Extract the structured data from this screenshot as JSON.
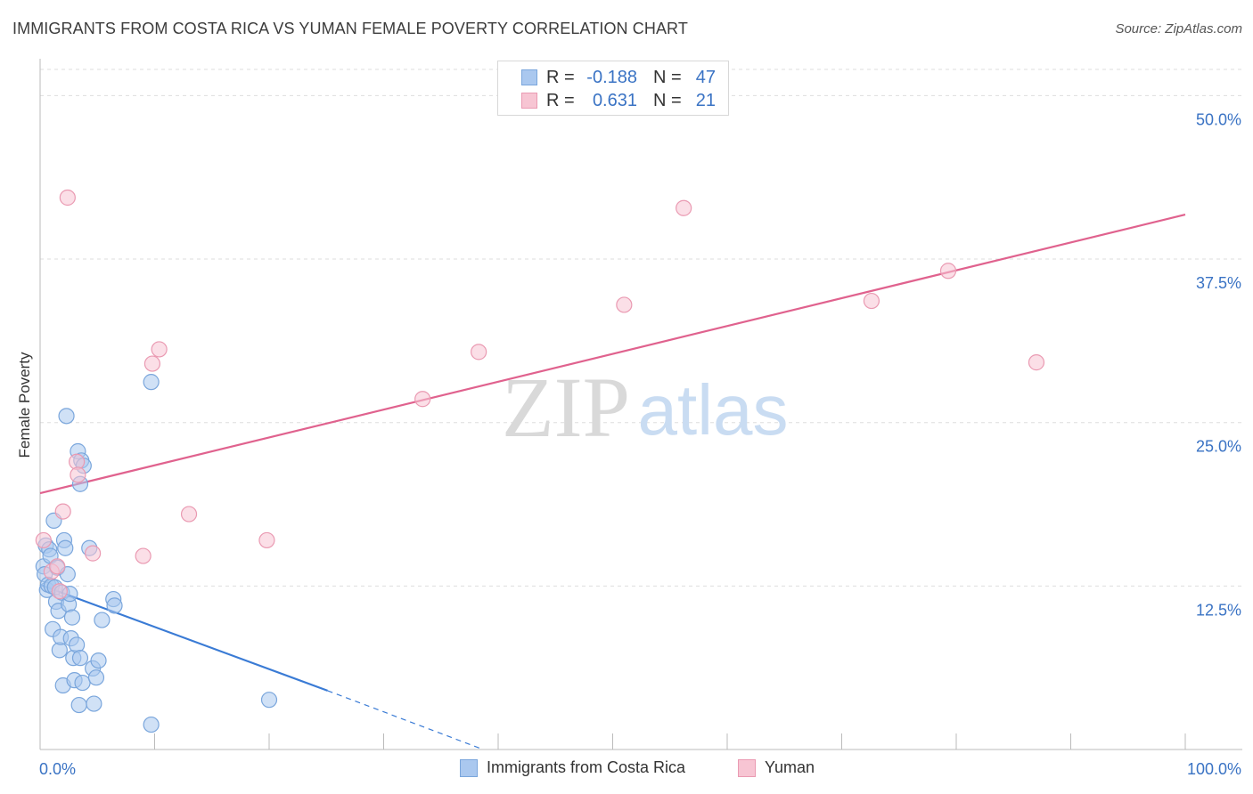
{
  "header": {
    "title": "IMMIGRANTS FROM COSTA RICA VS YUMAN FEMALE POVERTY CORRELATION CHART",
    "source": "Source: ZipAtlas.com"
  },
  "watermark": {
    "part1": "ZIP",
    "part2": "atlas"
  },
  "legend": {
    "rows": [
      {
        "r_label": "R =",
        "r_value": "-0.188",
        "n_label": "N =",
        "n_value": "47",
        "color": "#aac8ef",
        "stroke": "#7aa6dc"
      },
      {
        "r_label": "R =",
        "r_value": "0.631",
        "n_label": "N =",
        "n_value": "21",
        "color": "#f7c5d3",
        "stroke": "#ea9ab2"
      }
    ]
  },
  "bottom_legend": {
    "items": [
      {
        "label": "Immigrants from Costa Rica",
        "color": "#aac8ef",
        "stroke": "#7aa6dc"
      },
      {
        "label": "Yuman",
        "color": "#f7c5d3",
        "stroke": "#ea9ab2"
      }
    ]
  },
  "chart_data": {
    "type": "scatter",
    "title": "IMMIGRANTS FROM COSTA RICA VS YUMAN FEMALE POVERTY CORRELATION CHART",
    "xlabel": "",
    "ylabel": "Female Poverty",
    "xlim": [
      0,
      100
    ],
    "ylim": [
      0,
      52.0
    ],
    "x_tick_labels": [
      "0.0%",
      "100.0%"
    ],
    "y_ticks": [
      12.5,
      25.0,
      37.5,
      50.0
    ],
    "y_tick_labels": [
      "12.5%",
      "25.0%",
      "37.5%",
      "50.0%"
    ],
    "grid": true,
    "colors": {
      "blue": "#3a7bd5",
      "pink": "#e0628e",
      "axis_text": "#3a73c4"
    },
    "series": [
      {
        "name": "Immigrants from Costa Rica",
        "color": "#aac8ef",
        "stroke": "#7aa6dc",
        "points": [
          [
            0.3,
            14.0
          ],
          [
            0.4,
            13.4
          ],
          [
            0.5,
            15.6
          ],
          [
            0.6,
            12.2
          ],
          [
            0.7,
            12.6
          ],
          [
            0.8,
            15.3
          ],
          [
            0.9,
            14.8
          ],
          [
            1.0,
            12.5
          ],
          [
            1.1,
            9.2
          ],
          [
            1.2,
            17.5
          ],
          [
            1.3,
            12.4
          ],
          [
            1.4,
            11.3
          ],
          [
            1.5,
            13.9
          ],
          [
            1.6,
            10.6
          ],
          [
            1.7,
            7.6
          ],
          [
            1.8,
            8.6
          ],
          [
            1.9,
            12.0
          ],
          [
            2.0,
            4.9
          ],
          [
            2.1,
            16.0
          ],
          [
            2.2,
            15.4
          ],
          [
            2.3,
            25.5
          ],
          [
            2.4,
            13.4
          ],
          [
            2.5,
            11.1
          ],
          [
            2.6,
            11.9
          ],
          [
            2.7,
            8.5
          ],
          [
            2.8,
            10.1
          ],
          [
            2.9,
            7.0
          ],
          [
            3.0,
            5.3
          ],
          [
            3.2,
            8.0
          ],
          [
            3.3,
            22.8
          ],
          [
            3.4,
            3.4
          ],
          [
            3.5,
            7.0
          ],
          [
            3.5,
            20.3
          ],
          [
            3.6,
            22.1
          ],
          [
            3.7,
            5.1
          ],
          [
            3.8,
            21.7
          ],
          [
            4.3,
            15.4
          ],
          [
            4.6,
            6.2
          ],
          [
            4.7,
            3.5
          ],
          [
            4.9,
            5.5
          ],
          [
            5.1,
            6.8
          ],
          [
            5.4,
            9.9
          ],
          [
            6.4,
            11.5
          ],
          [
            6.5,
            11.0
          ],
          [
            9.7,
            28.1
          ],
          [
            9.7,
            1.9
          ],
          [
            20.0,
            3.8
          ]
        ]
      },
      {
        "name": "Yuman",
        "color": "#f7c5d3",
        "stroke": "#ea9ab2",
        "points": [
          [
            0.3,
            16.0
          ],
          [
            1.0,
            13.6
          ],
          [
            1.5,
            14.0
          ],
          [
            1.7,
            12.1
          ],
          [
            2.0,
            18.2
          ],
          [
            2.4,
            42.2
          ],
          [
            3.2,
            22.0
          ],
          [
            3.3,
            21.0
          ],
          [
            4.6,
            15.0
          ],
          [
            9.0,
            14.8
          ],
          [
            9.8,
            29.5
          ],
          [
            10.4,
            30.6
          ],
          [
            13.0,
            18.0
          ],
          [
            19.8,
            16.0
          ],
          [
            33.4,
            26.8
          ],
          [
            38.3,
            30.4
          ],
          [
            51.0,
            34.0
          ],
          [
            56.2,
            41.4
          ],
          [
            72.6,
            34.3
          ],
          [
            79.3,
            36.6
          ],
          [
            87.0,
            29.6
          ]
        ]
      }
    ],
    "trendlines": [
      {
        "series": "Immigrants from Costa Rica",
        "x": [
          0,
          25.1
        ],
        "y": [
          12.6,
          4.5
        ],
        "dashed_to": [
          38.7,
          0.0
        ],
        "color": "#3a7bd5"
      },
      {
        "series": "Yuman",
        "x": [
          0,
          100
        ],
        "y": [
          19.6,
          40.9
        ],
        "color": "#e0628e"
      }
    ]
  }
}
